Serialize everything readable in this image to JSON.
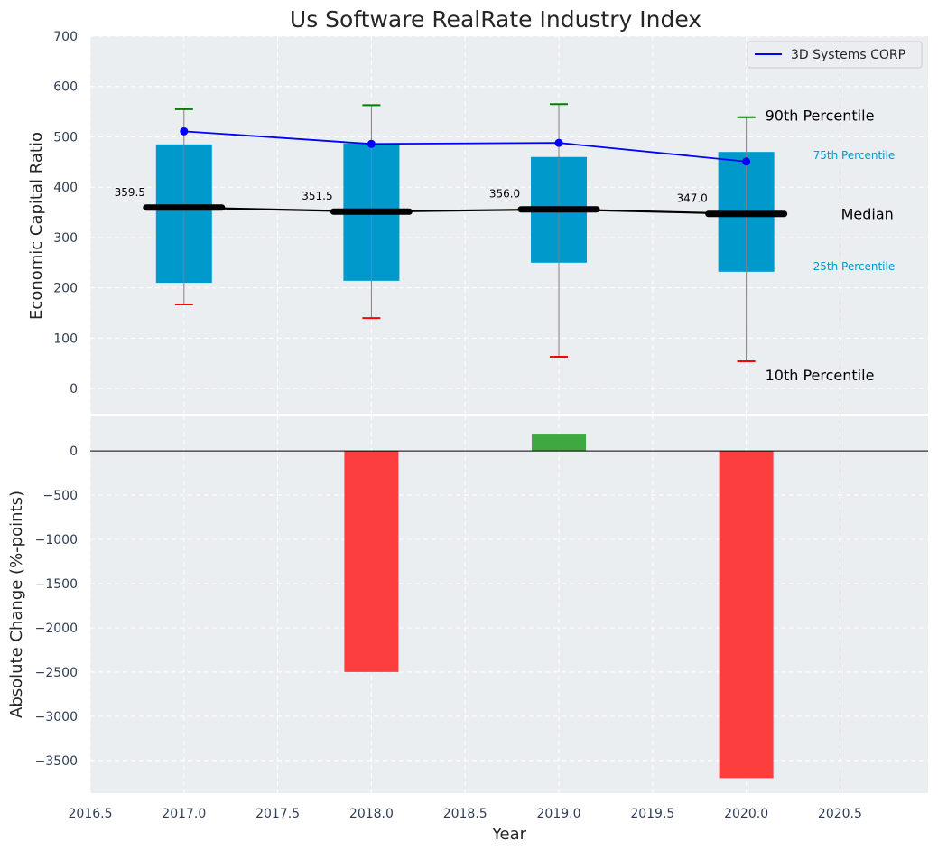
{
  "chart_data": [
    {
      "type": "box",
      "title": "Us Software RealRate Industry Index",
      "ylabel": "Economic Capital Ratio",
      "ylim": [
        -50,
        700
      ],
      "yticks": [
        "0",
        "100",
        "200",
        "300",
        "400",
        "500",
        "600",
        "700"
      ],
      "grid": true,
      "legend_position": "top-right",
      "years": [
        2017,
        2018,
        2019,
        2020
      ],
      "p10": [
        167,
        140,
        63,
        54
      ],
      "p25": [
        210,
        214,
        250,
        232
      ],
      "median": [
        359.5,
        351.5,
        356.0,
        347.0
      ],
      "median_labels": [
        "359.5",
        "351.5",
        "356.0",
        "347.0"
      ],
      "p75": [
        485,
        487,
        460,
        470
      ],
      "p90": [
        555,
        563,
        565,
        539
      ],
      "series": [
        {
          "name": "3D Systems CORP",
          "values": [
            511,
            486,
            488,
            451
          ],
          "color": "#0000ff"
        }
      ],
      "annotations": {
        "p90": "90th Percentile",
        "p75": "75th Percentile",
        "median": "Median",
        "p25": "25th Percentile",
        "p10": "10th Percentile"
      },
      "colors": {
        "box": "#0099cc",
        "whisker_top": "#008000",
        "whisker_bottom": "#ff0000",
        "median": "#000000",
        "percentile_label": "#0099cc"
      }
    },
    {
      "type": "bar",
      "ylabel": "Absolute Change (%-points)",
      "xlabel": "Year",
      "ylim": [
        -3870,
        400
      ],
      "xlim": [
        2016.5,
        2020.97
      ],
      "yticks": [
        "0",
        "−500",
        "−1000",
        "−1500",
        "−2000",
        "−2500",
        "−3000",
        "−3500"
      ],
      "xticks": [
        "2016.5",
        "2017.0",
        "2017.5",
        "2018.0",
        "2018.5",
        "2019.0",
        "2019.5",
        "2020.0",
        "2020.5"
      ],
      "grid": true,
      "x": [
        2018,
        2019,
        2020
      ],
      "values": [
        -2500,
        195,
        -3700
      ],
      "colors": {
        "positive": "#2ca02c",
        "negative": "#ff2a2a"
      }
    }
  ]
}
